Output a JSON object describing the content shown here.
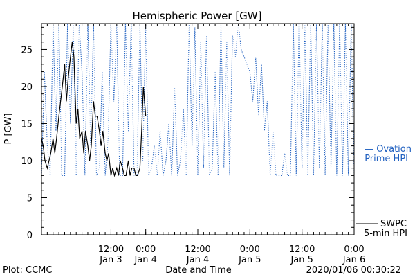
{
  "chart_data": {
    "type": "line",
    "title": "Hemispheric Power [GW]",
    "xlabel": "Date and Time",
    "ylabel": "P [GW]",
    "ylim": [
      0,
      28.5
    ],
    "xlim": [
      0,
      54
    ],
    "grid": false,
    "y_ticks": [
      0,
      5,
      10,
      15,
      20,
      25
    ],
    "x_ticks": [
      {
        "x": 12,
        "line1": "12:00",
        "line2": "Jan 3"
      },
      {
        "x": 18,
        "line1": "0:00",
        "line2": "Jan 4"
      },
      {
        "x": 27,
        "line1": "12:00",
        "line2": "Jan 4"
      },
      {
        "x": 36,
        "line1": "0:00",
        "line2": "Jan 5"
      },
      {
        "x": 45,
        "line1": "12:00",
        "line2": "Jan 5"
      },
      {
        "x": 54,
        "line1": "0:00",
        "line2": "Jan 6"
      }
    ],
    "legend": [
      {
        "line1": "— Ovation",
        "line2": "Prime HPI",
        "color": "#2060c0"
      },
      {
        "line1": "SWPC",
        "line2": "5-min HPI",
        "color": "#000000"
      }
    ],
    "series": [
      {
        "name": "Ovation Prime HPI",
        "color": "#2060c0",
        "style": "dotted",
        "x": [
          0,
          0.5,
          1,
          1.5,
          2,
          2.5,
          3,
          3.5,
          4,
          4.5,
          5,
          5.5,
          6,
          6.5,
          7,
          7.5,
          8,
          8.5,
          9,
          9.5,
          10,
          10.5,
          11,
          11.5,
          12,
          12.5,
          13,
          13.5,
          14,
          14.5,
          15,
          15.5,
          16,
          16.5,
          17,
          17.5,
          18,
          18.5,
          19,
          19.5,
          20,
          20.5,
          21,
          21.5,
          22,
          22.5,
          23,
          23.5,
          24,
          24.5,
          25,
          25.5,
          26,
          26.5,
          27,
          27.5,
          28,
          28.5,
          29,
          29.5,
          30,
          30.5,
          31,
          31.5,
          32,
          32.5,
          33,
          33.5,
          34,
          34.5,
          35,
          35.5,
          36,
          36.5,
          37,
          37.5,
          38,
          38.5,
          39,
          39.5,
          40,
          40.5,
          41,
          41.5,
          42,
          42.5,
          43,
          43.5,
          44,
          44.5,
          45,
          45.5,
          46,
          46.5,
          47,
          47.5,
          48,
          48.5,
          49,
          49.5,
          50,
          50.5,
          51,
          51.5,
          52,
          52.5,
          53,
          53.5,
          54
        ],
        "y": [
          8,
          22,
          12,
          8,
          28.5,
          14,
          28.5,
          8,
          8,
          28.5,
          15,
          28.5,
          8,
          28.5,
          22,
          8,
          28.5,
          12,
          28.5,
          8,
          9,
          22,
          8,
          13,
          28.5,
          18,
          28.5,
          8,
          8,
          28.5,
          14,
          28.5,
          8,
          8,
          28.5,
          10,
          28.5,
          8,
          9,
          12,
          8,
          14,
          8,
          10,
          15,
          8,
          20,
          8,
          10,
          17,
          8,
          28.5,
          12,
          28,
          8,
          26,
          9,
          27,
          8,
          9,
          22,
          8,
          28.5,
          9,
          26,
          8,
          27,
          24,
          28.5,
          25,
          24,
          23,
          22,
          18,
          24,
          16,
          23,
          14,
          18,
          8,
          14,
          8,
          8,
          8,
          11,
          8,
          8,
          28.5,
          8,
          28.5,
          9,
          28.5,
          8,
          28.5,
          8,
          28.5,
          9,
          28.5,
          8,
          28.5,
          9,
          28.5,
          8,
          28.5,
          8,
          28.5,
          8,
          28.5,
          8
        ]
      },
      {
        "name": "SWPC 5-min HPI",
        "color": "#000000",
        "style": "solid",
        "x": [
          0,
          0.3,
          0.6,
          1,
          1.3,
          1.6,
          2,
          2.3,
          2.6,
          3,
          3.3,
          3.6,
          4,
          4.3,
          4.6,
          5,
          5.3,
          5.6,
          6,
          6.3,
          6.6,
          7,
          7.3,
          7.6,
          8,
          8.3,
          8.6,
          9,
          9.3,
          9.6,
          10,
          10.3,
          10.6,
          11,
          11.3,
          11.6,
          12,
          12.3,
          12.6,
          13,
          13.3,
          13.6,
          14,
          14.3,
          14.6,
          15,
          15.3,
          15.6,
          16,
          16.3,
          16.6,
          17,
          17.3,
          17.6,
          18
        ],
        "y": [
          13,
          12,
          10,
          9,
          10,
          11,
          13,
          11,
          13,
          16,
          18,
          20,
          23,
          18,
          21,
          24,
          26,
          24,
          15,
          17,
          13,
          14,
          11,
          14,
          12,
          10,
          12,
          18,
          16,
          16,
          14,
          12,
          14,
          11,
          10,
          11,
          8,
          9,
          8,
          9,
          8,
          10,
          9,
          8,
          8,
          10,
          8,
          9,
          9,
          8,
          8,
          9,
          14,
          20,
          16
        ]
      }
    ]
  },
  "footer": {
    "left": "Plot: CCMC",
    "right": "2020/01/06 00:30:22"
  }
}
